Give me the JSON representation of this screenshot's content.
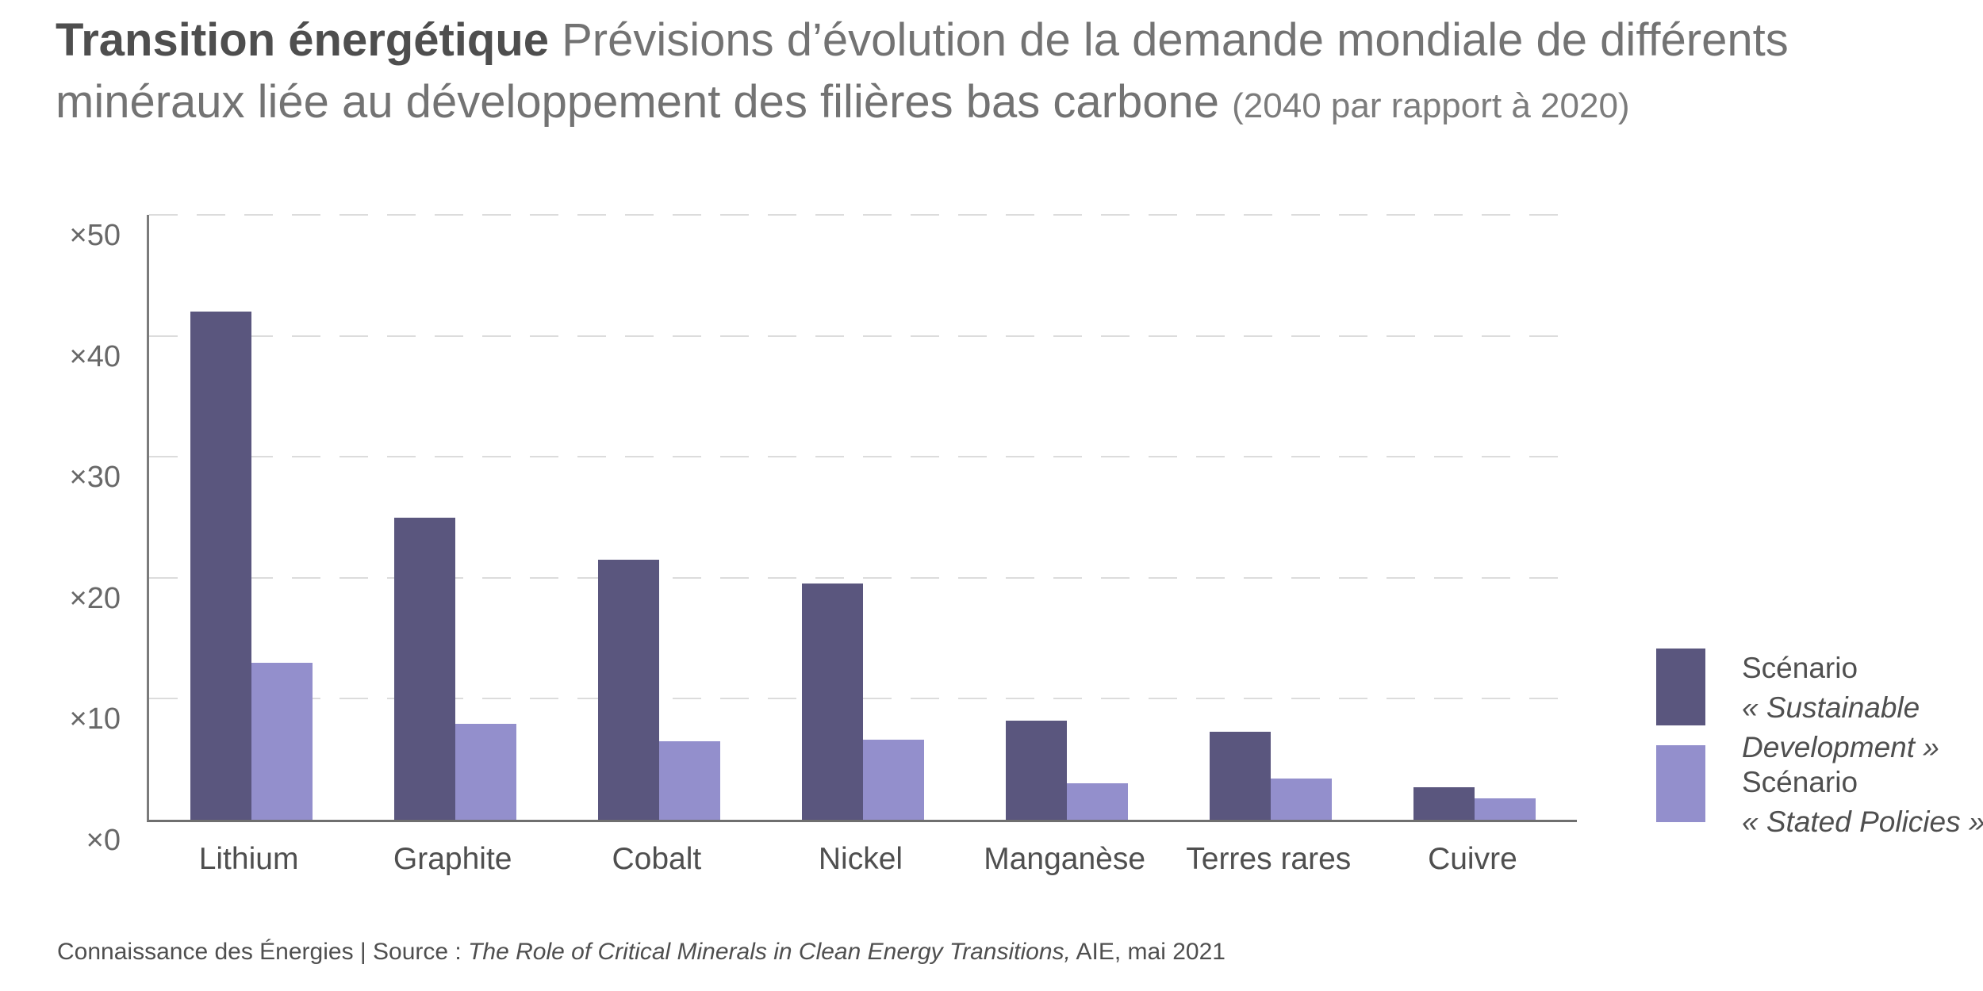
{
  "page": {
    "background": "#ffffff"
  },
  "title": {
    "bold": "Transition énergétique",
    "main": "Prévisions d’évolution de la demande mondiale de différents minéraux liée au développement des filières bas carbone",
    "note": "(2040 par rapport à 2020)"
  },
  "chart_data": {
    "type": "bar",
    "categories": [
      "Lithium",
      "Graphite",
      "Cobalt",
      "Nickel",
      "Manganèse",
      "Terres rares",
      "Cuivre"
    ],
    "series": [
      {
        "key": "sds",
        "name": "Scénario « Sustainable Development »",
        "color": "#5a567e",
        "values": [
          42,
          25,
          21.5,
          19.5,
          8.2,
          7.3,
          2.7
        ]
      },
      {
        "key": "steps",
        "name": "Scénario « Stated Policies »",
        "color": "#938fcc",
        "values": [
          13,
          7.9,
          6.5,
          6.6,
          3,
          3.4,
          1.8
        ]
      }
    ],
    "xlabel": "",
    "ylabel": "",
    "ylim": [
      0,
      50
    ],
    "yticks": [
      "×0",
      "×10",
      "×20",
      "×30",
      "×40",
      "×50"
    ],
    "grid": "horizontal-dashed",
    "legend_position": "right"
  },
  "legend": {
    "items": [
      {
        "label": "Scénario",
        "scenario": "« Sustainable Development »",
        "color": "#5a567e"
      },
      {
        "label": "Scénario",
        "scenario": "« Stated Policies »",
        "color": "#938fcc"
      }
    ]
  },
  "footer": {
    "prefix": "Connaissance des Énergies | Source : ",
    "source_italic": "The Role of Critical Minerals in Clean Energy Transitions,",
    "suffix": " AIE, mai 2021"
  }
}
